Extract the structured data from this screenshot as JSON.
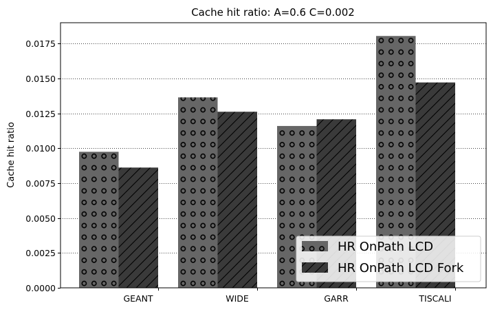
{
  "chart_data": {
    "type": "bar",
    "title": "Cache hit ratio: A=0.6 C=0.002",
    "xlabel": "",
    "ylabel": "Cache hit ratio",
    "categories": [
      "GEANT",
      "WIDE",
      "GARR",
      "TISCALI"
    ],
    "series": [
      {
        "name": "HR OnPath LCD",
        "values": [
          0.00975,
          0.01365,
          0.0116,
          0.01805
        ],
        "color": "#666666",
        "pattern": "circles"
      },
      {
        "name": "HR OnPath LCD Fork",
        "values": [
          0.00862,
          0.01262,
          0.01208,
          0.01472
        ],
        "color": "#3a3a3a",
        "pattern": "diagonal-hatch"
      }
    ],
    "ylim": [
      0,
      0.019
    ],
    "yticks": [
      0.0,
      0.0025,
      0.005,
      0.0075,
      0.01,
      0.0125,
      0.015,
      0.0175
    ],
    "ytick_labels": [
      "0.0000",
      "0.0025",
      "0.0050",
      "0.0075",
      "0.0100",
      "0.0125",
      "0.0150",
      "0.0175"
    ],
    "grid": "horizontal-dotted",
    "legend_position": "bottom-right"
  }
}
